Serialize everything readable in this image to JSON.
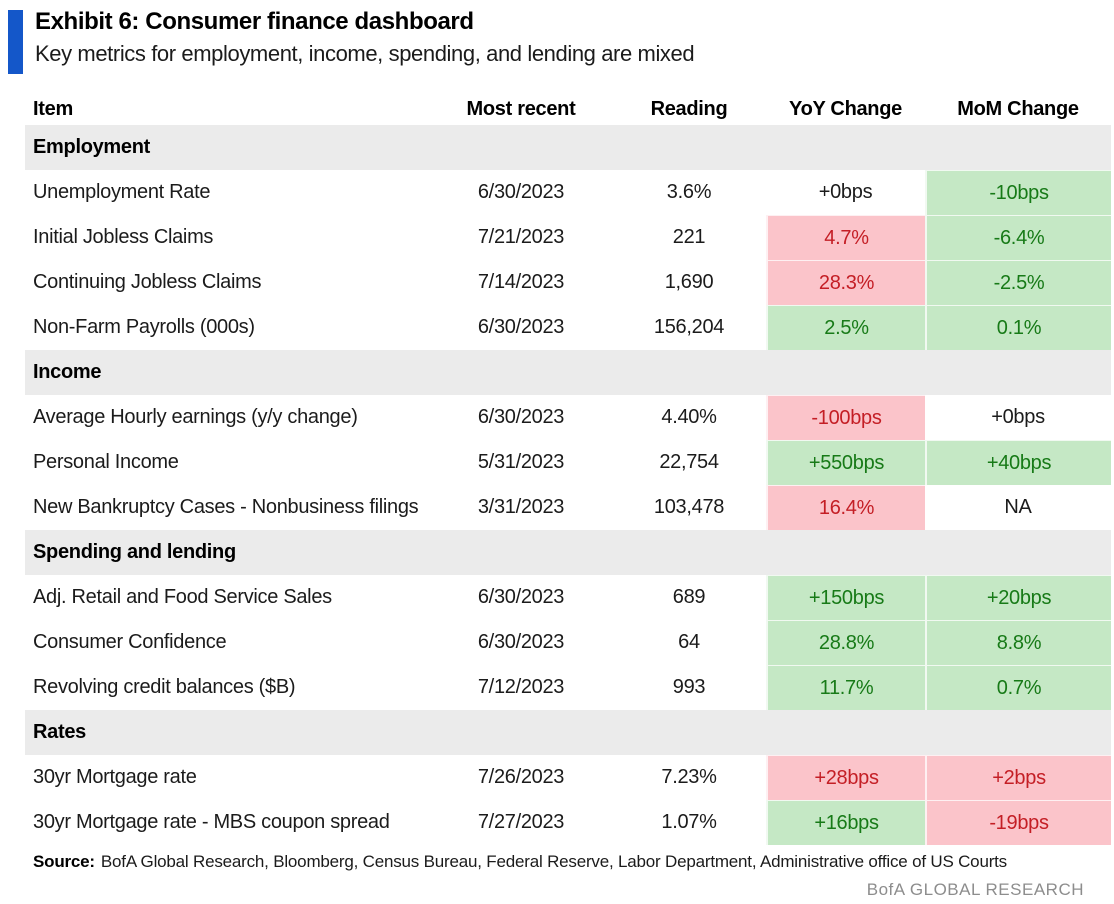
{
  "exhibit": {
    "title": "Exhibit 6: Consumer finance dashboard",
    "subtitle": "Key metrics for employment, income, spending, and lending are mixed",
    "source_label": "Source:",
    "source_text": "BofA Global Research, Bloomberg, Census Bureau, Federal Reserve, Labor Department, Administrative office of US Courts",
    "brand_footer": "BofA GLOBAL RESEARCH"
  },
  "colors": {
    "accent_blue": "#1457C9",
    "positive_bg": "#C5E8C5",
    "positive_text": "#177A17",
    "negative_bg": "#FBC4CA",
    "negative_text": "#C41E25",
    "section_bg": "#EBEBEB",
    "footer_gray": "#8D8D8D"
  },
  "chart_data": {
    "type": "table",
    "title": "Exhibit 6: Consumer finance dashboard",
    "subtitle": "Key metrics for employment, income, spending, and lending are mixed",
    "columns": [
      "Item",
      "Most recent",
      "Reading",
      "YoY Change",
      "MoM Change"
    ],
    "tone_legend": {
      "positive": "green highlight (improving)",
      "negative": "red highlight (worsening)",
      "neutral": "no highlight"
    },
    "sections": [
      {
        "name": "Employment",
        "rows": [
          {
            "item": "Unemployment Rate",
            "most_recent": "6/30/2023",
            "reading": "3.6%",
            "yoy_value": "+0bps",
            "yoy_tone": "neutral",
            "mom_value": "-10bps",
            "mom_tone": "positive"
          },
          {
            "item": "Initial Jobless Claims",
            "most_recent": "7/21/2023",
            "reading": "221",
            "yoy_value": "4.7%",
            "yoy_tone": "negative",
            "mom_value": "-6.4%",
            "mom_tone": "positive"
          },
          {
            "item": "Continuing Jobless Claims",
            "most_recent": "7/14/2023",
            "reading": "1,690",
            "yoy_value": "28.3%",
            "yoy_tone": "negative",
            "mom_value": "-2.5%",
            "mom_tone": "positive"
          },
          {
            "item": "Non-Farm Payrolls (000s)",
            "most_recent": "6/30/2023",
            "reading": "156,204",
            "yoy_value": "2.5%",
            "yoy_tone": "positive",
            "mom_value": "0.1%",
            "mom_tone": "positive"
          }
        ]
      },
      {
        "name": "Income",
        "rows": [
          {
            "item": "Average Hourly earnings (y/y change)",
            "most_recent": "6/30/2023",
            "reading": "4.40%",
            "yoy_value": "-100bps",
            "yoy_tone": "negative",
            "mom_value": "+0bps",
            "mom_tone": "neutral"
          },
          {
            "item": "Personal Income",
            "most_recent": "5/31/2023",
            "reading": "22,754",
            "yoy_value": "+550bps",
            "yoy_tone": "positive",
            "mom_value": "+40bps",
            "mom_tone": "positive"
          },
          {
            "item": "New Bankruptcy Cases - Nonbusiness filings",
            "most_recent": "3/31/2023",
            "reading": "103,478",
            "yoy_value": "16.4%",
            "yoy_tone": "negative",
            "mom_value": "NA",
            "mom_tone": "neutral"
          }
        ]
      },
      {
        "name": "Spending and lending",
        "rows": [
          {
            "item": "Adj. Retail and Food Service Sales",
            "most_recent": "6/30/2023",
            "reading": "689",
            "yoy_value": "+150bps",
            "yoy_tone": "positive",
            "mom_value": "+20bps",
            "mom_tone": "positive"
          },
          {
            "item": "Consumer Confidence",
            "most_recent": "6/30/2023",
            "reading": "64",
            "yoy_value": "28.8%",
            "yoy_tone": "positive",
            "mom_value": "8.8%",
            "mom_tone": "positive"
          },
          {
            "item": "Revolving credit balances ($B)",
            "most_recent": "7/12/2023",
            "reading": "993",
            "yoy_value": "11.7%",
            "yoy_tone": "positive",
            "mom_value": "0.7%",
            "mom_tone": "positive"
          }
        ]
      },
      {
        "name": "Rates",
        "rows": [
          {
            "item": "30yr Mortgage rate",
            "most_recent": "7/26/2023",
            "reading": "7.23%",
            "yoy_value": "+28bps",
            "yoy_tone": "negative",
            "mom_value": "+2bps",
            "mom_tone": "negative"
          },
          {
            "item": "30yr Mortgage rate - MBS coupon spread",
            "most_recent": "7/27/2023",
            "reading": "1.07%",
            "yoy_value": "+16bps",
            "yoy_tone": "positive",
            "mom_value": "-19bps",
            "mom_tone": "negative"
          }
        ]
      }
    ]
  }
}
